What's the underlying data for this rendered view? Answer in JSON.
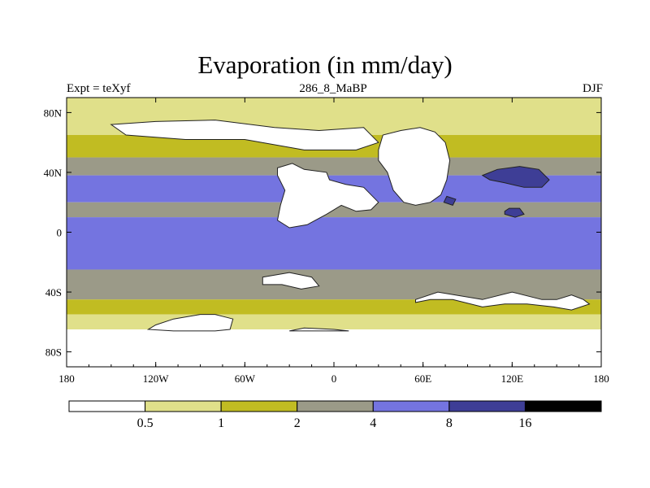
{
  "chart_data": {
    "type": "heatmap",
    "title": "Evaporation (in mm/day)",
    "subtitle_left": "Expt = teXyf",
    "subtitle_center": "286_8_MaBP",
    "subtitle_right": "DJF",
    "x_ticks": [
      "180",
      "120W",
      "60W",
      "0",
      "60E",
      "120E",
      "180"
    ],
    "y_ticks": [
      "80N",
      "40N",
      "0",
      "40S",
      "80S"
    ],
    "xlim": [
      -180,
      180
    ],
    "ylim": [
      -90,
      90
    ],
    "colorbar": {
      "levels": [
        "0.5",
        "1",
        "2",
        "4",
        "8",
        "16"
      ],
      "colors": [
        "#ffffff",
        "#e0e08a",
        "#c1bc22",
        "#9b9a88",
        "#7474e0",
        "#3e3e96",
        "#000000"
      ]
    },
    "zonal_bands": [
      {
        "lat_from": 90,
        "lat_to": 65,
        "value_class": 1
      },
      {
        "lat_from": 65,
        "lat_to": 50,
        "value_class": 2
      },
      {
        "lat_from": 50,
        "lat_to": 38,
        "value_class": 3
      },
      {
        "lat_from": 38,
        "lat_to": 20,
        "value_class": 4
      },
      {
        "lat_from": 20,
        "lat_to": 10,
        "value_class": 3
      },
      {
        "lat_from": 10,
        "lat_to": -25,
        "value_class": 4
      },
      {
        "lat_from": -25,
        "lat_to": -45,
        "value_class": 3
      },
      {
        "lat_from": -45,
        "lat_to": -55,
        "value_class": 2
      },
      {
        "lat_from": -55,
        "lat_to": -65,
        "value_class": 1
      },
      {
        "lat_from": -65,
        "lat_to": -90,
        "value_class": 0
      }
    ],
    "regions": [
      {
        "name": "north-america",
        "value_class": 0,
        "lonlat": [
          [
            -38,
            43
          ],
          [
            -28,
            46
          ],
          [
            -20,
            42
          ],
          [
            -5,
            40
          ],
          [
            -3,
            35
          ],
          [
            8,
            32
          ],
          [
            20,
            30
          ],
          [
            30,
            20
          ],
          [
            25,
            15
          ],
          [
            15,
            14
          ],
          [
            5,
            18
          ],
          [
            -5,
            12
          ],
          [
            -18,
            5
          ],
          [
            -30,
            3
          ],
          [
            -38,
            8
          ],
          [
            -36,
            18
          ],
          [
            -33,
            28
          ],
          [
            -38,
            38
          ]
        ]
      },
      {
        "name": "asia",
        "value_class": 0,
        "lonlat": [
          [
            30,
            55
          ],
          [
            33,
            65
          ],
          [
            45,
            68
          ],
          [
            58,
            70
          ],
          [
            68,
            67
          ],
          [
            75,
            60
          ],
          [
            78,
            48
          ],
          [
            76,
            35
          ],
          [
            72,
            25
          ],
          [
            65,
            20
          ],
          [
            55,
            18
          ],
          [
            47,
            20
          ],
          [
            40,
            28
          ],
          [
            36,
            40
          ],
          [
            30,
            48
          ]
        ]
      },
      {
        "name": "south-america",
        "value_class": 0,
        "lonlat": [
          [
            -48,
            -30
          ],
          [
            -30,
            -27
          ],
          [
            -15,
            -30
          ],
          [
            -10,
            -36
          ],
          [
            -22,
            -38
          ],
          [
            -35,
            -35
          ],
          [
            -48,
            -35
          ]
        ]
      },
      {
        "name": "south-africa-india",
        "value_class": 0,
        "lonlat": [
          [
            55,
            -47
          ],
          [
            65,
            -45
          ],
          [
            80,
            -45
          ],
          [
            100,
            -50
          ],
          [
            115,
            -48
          ],
          [
            130,
            -48
          ],
          [
            148,
            -50
          ],
          [
            160,
            -52
          ],
          [
            172,
            -48
          ],
          [
            168,
            -45
          ],
          [
            160,
            -42
          ],
          [
            150,
            -45
          ],
          [
            140,
            -45
          ],
          [
            120,
            -40
          ],
          [
            100,
            -45
          ],
          [
            70,
            -40
          ],
          [
            55,
            -45
          ]
        ]
      },
      {
        "name": "south-america-tip",
        "value_class": 0,
        "lonlat": [
          [
            -120,
            -62
          ],
          [
            -108,
            -58
          ],
          [
            -90,
            -55
          ],
          [
            -80,
            -55
          ],
          [
            -72,
            -57
          ],
          [
            -68,
            -58
          ],
          [
            -70,
            -65
          ],
          [
            -80,
            -66
          ],
          [
            -95,
            -66
          ],
          [
            -108,
            -66
          ],
          [
            -125,
            -65
          ]
        ]
      },
      {
        "name": "antarctica",
        "value_class": 0,
        "lonlat": [
          [
            -30,
            -66
          ],
          [
            -20,
            -64
          ],
          [
            0,
            -65
          ],
          [
            10,
            -66
          ],
          [
            -30,
            -66
          ]
        ]
      },
      {
        "name": "north-pacific-high",
        "value_class": 5,
        "lonlat": [
          [
            100,
            38
          ],
          [
            110,
            42
          ],
          [
            125,
            44
          ],
          [
            138,
            42
          ],
          [
            145,
            35
          ],
          [
            140,
            30
          ],
          [
            128,
            30
          ],
          [
            115,
            33
          ],
          [
            105,
            35
          ]
        ]
      },
      {
        "name": "south-china-low",
        "value_class": 5,
        "lonlat": [
          [
            74,
            20
          ],
          [
            76,
            24
          ],
          [
            82,
            22
          ],
          [
            80,
            18
          ]
        ]
      },
      {
        "name": "east-asia-low",
        "value_class": 5,
        "lonlat": [
          [
            115,
            14
          ],
          [
            118,
            16
          ],
          [
            125,
            16
          ],
          [
            128,
            12
          ],
          [
            122,
            10
          ],
          [
            115,
            12
          ]
        ]
      },
      {
        "name": "arctic-low",
        "value_class": 0,
        "lonlat": [
          [
            -150,
            72
          ],
          [
            -120,
            74
          ],
          [
            -80,
            75
          ],
          [
            -40,
            70
          ],
          [
            -10,
            68
          ],
          [
            20,
            70
          ],
          [
            30,
            60
          ],
          [
            15,
            55
          ],
          [
            -20,
            55
          ],
          [
            -60,
            62
          ],
          [
            -100,
            62
          ],
          [
            -140,
            65
          ]
        ]
      }
    ]
  }
}
